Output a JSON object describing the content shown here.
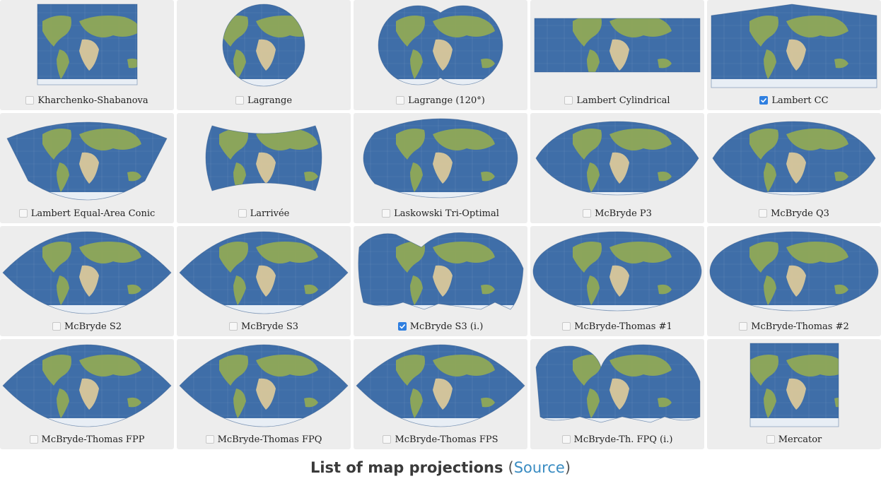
{
  "colors": {
    "ocean": "#3f6ea8",
    "ocean_dark": "#2c5387",
    "land": "#8fa856",
    "land_dry": "#d9c79a",
    "ice": "#e8eef5",
    "tile_bg": "#ededed",
    "check_on": "#2f7fe0",
    "link": "#3a8cc2"
  },
  "projections": [
    {
      "label": "Kharchenko-Shabanova",
      "checked": false,
      "shape": "rect"
    },
    {
      "label": "Lagrange",
      "checked": false,
      "shape": "circle"
    },
    {
      "label": "Lagrange (120°)",
      "checked": false,
      "shape": "double-circle"
    },
    {
      "label": "Lambert Cylindrical",
      "checked": false,
      "shape": "wide-rect"
    },
    {
      "label": "Lambert CC",
      "checked": true,
      "shape": "conic"
    },
    {
      "label": "Lambert Equal-Area Conic",
      "checked": false,
      "shape": "fan"
    },
    {
      "label": "Larrivée",
      "checked": false,
      "shape": "pinched"
    },
    {
      "label": "Laskowski Tri-Optimal",
      "checked": false,
      "shape": "rounded"
    },
    {
      "label": "McBryde P3",
      "checked": false,
      "shape": "flat-oval"
    },
    {
      "label": "McBryde Q3",
      "checked": false,
      "shape": "flat-oval"
    },
    {
      "label": "McBryde S2",
      "checked": false,
      "shape": "lens"
    },
    {
      "label": "McBryde S3",
      "checked": false,
      "shape": "lens"
    },
    {
      "label": "McBryde S3 (i.)",
      "checked": true,
      "shape": "interrupted"
    },
    {
      "label": "McBryde-Thomas #1",
      "checked": false,
      "shape": "oval"
    },
    {
      "label": "McBryde-Thomas #2",
      "checked": false,
      "shape": "oval"
    },
    {
      "label": "McBryde-Thomas FPP",
      "checked": false,
      "shape": "lens"
    },
    {
      "label": "McBryde-Thomas FPQ",
      "checked": false,
      "shape": "lens"
    },
    {
      "label": "McBryde-Thomas FPS",
      "checked": false,
      "shape": "lens"
    },
    {
      "label": "McBryde-Th. FPQ (i.)",
      "checked": false,
      "shape": "interrupted2"
    },
    {
      "label": "Mercator",
      "checked": false,
      "shape": "tall-rect"
    }
  ],
  "footer": {
    "title": "List of map projections",
    "open_paren": "(",
    "source_link": "Source",
    "close_paren": ")"
  }
}
